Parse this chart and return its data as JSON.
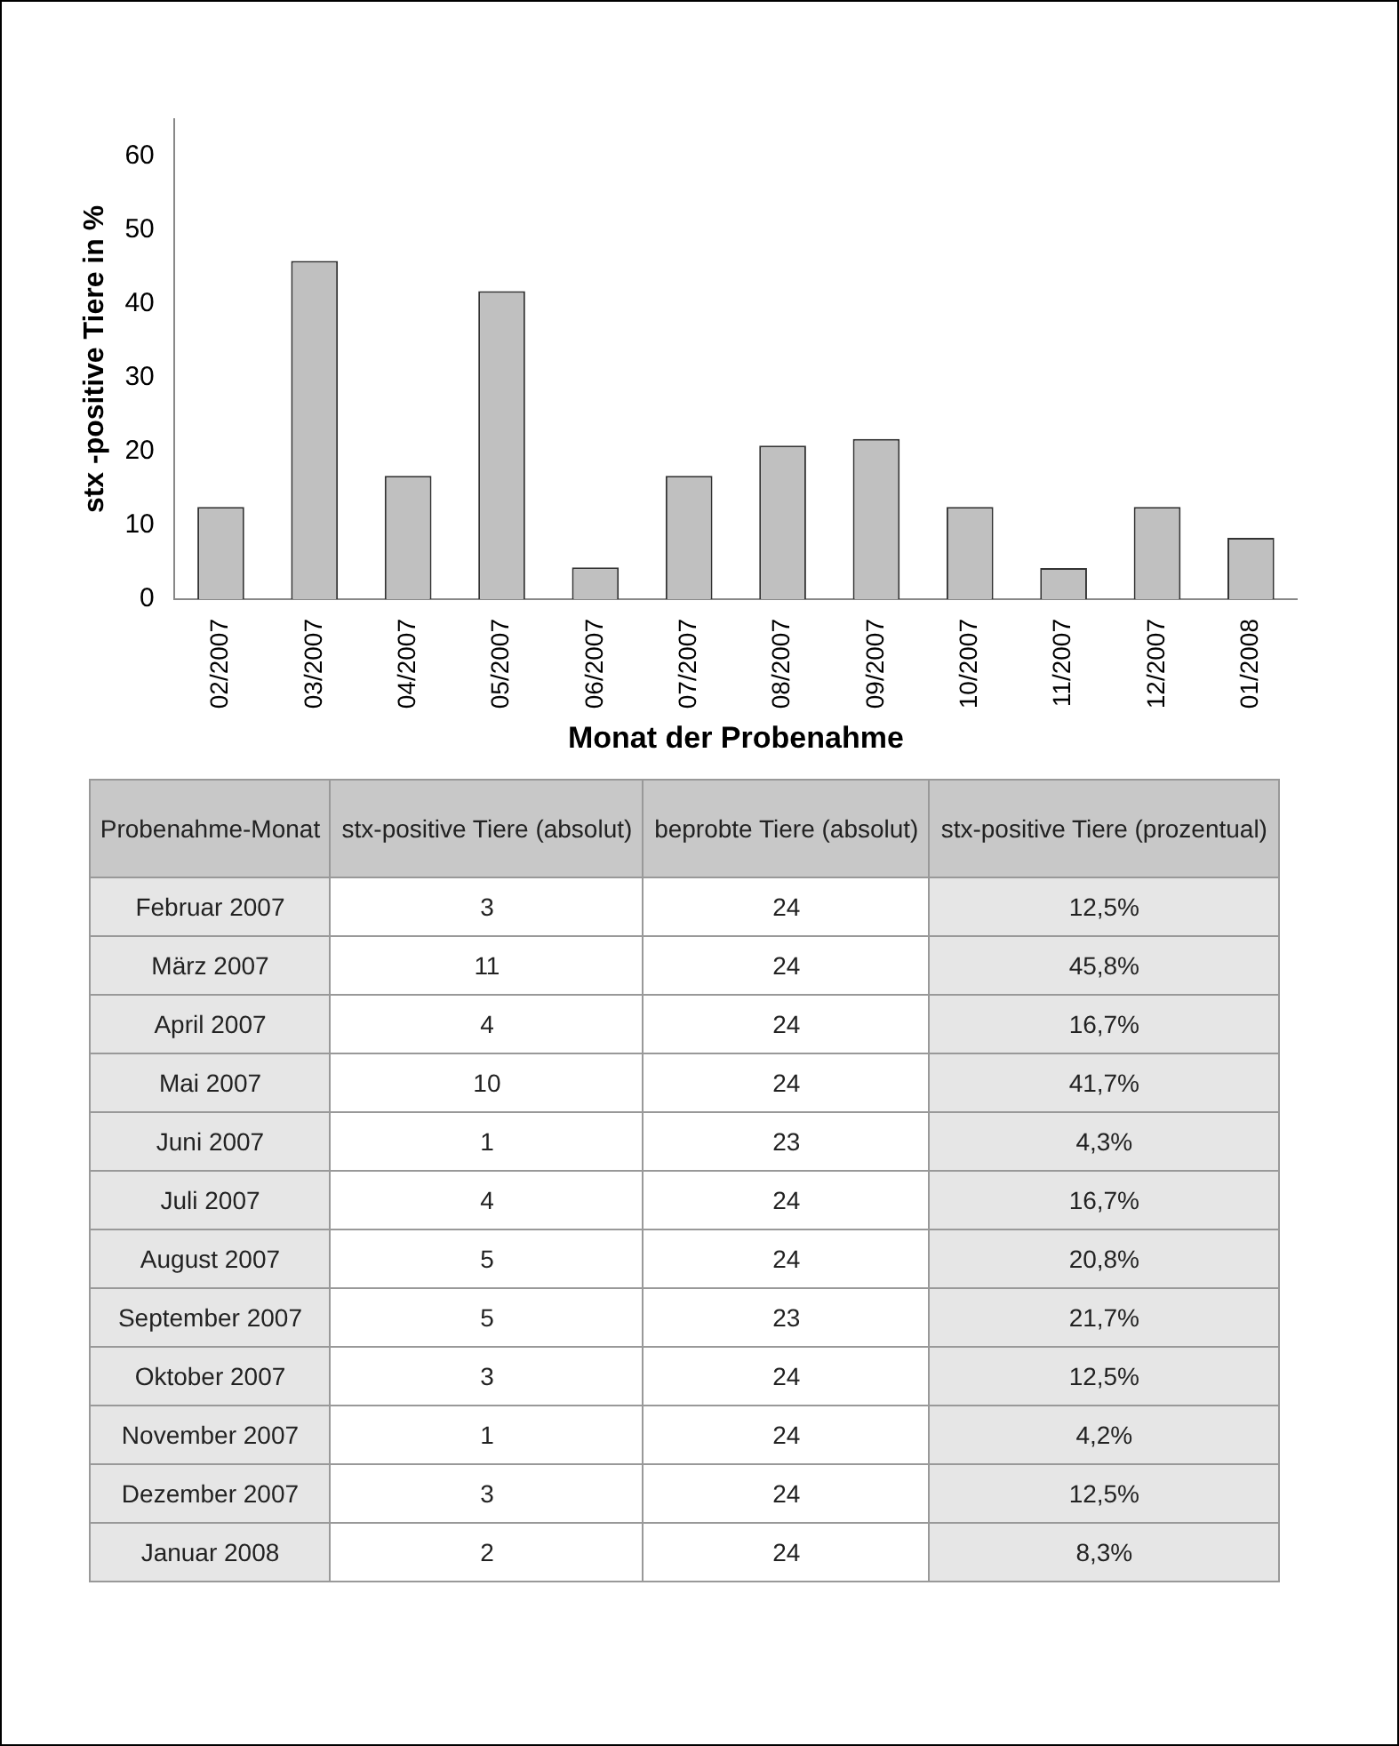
{
  "chart_data": [
    {
      "type": "bar",
      "xlabel": "Monat der Probenahme",
      "ylabel": "stx -positive Tiere in %",
      "categories": [
        "02/2007",
        "03/2007",
        "04/2007",
        "05/2007",
        "06/2007",
        "07/2007",
        "08/2007",
        "09/2007",
        "10/2007",
        "11/2007",
        "12/2007",
        "01/2008"
      ],
      "values": [
        12.5,
        45.8,
        16.7,
        41.7,
        4.3,
        16.7,
        20.8,
        21.7,
        12.5,
        4.2,
        12.5,
        8.3
      ],
      "color": "#c0c0c0",
      "ylim": [
        0,
        65
      ],
      "yticks": [
        0,
        10,
        20,
        30,
        40,
        50,
        60
      ],
      "grid": false,
      "legend": false
    },
    {
      "type": "other",
      "ylabel": "Probenahme-Monat",
      "categories": [
        "Februar 2007",
        "März 2007",
        "April 2007",
        "Mai 2007",
        "Juni 2007",
        "Juli 2007",
        "August 2007",
        "September 2007",
        "Oktober 2007",
        "November 2007",
        "Dezember 2007",
        "Januar 2008"
      ],
      "series": [
        {
          "name": "stx-positive Tiere (absolut)",
          "values": [
            3,
            11,
            4,
            10,
            1,
            4,
            5,
            5,
            3,
            1,
            3,
            2
          ]
        },
        {
          "name": "beprobte Tiere (absolut)",
          "values": [
            24,
            24,
            24,
            24,
            23,
            24,
            24,
            23,
            24,
            24,
            24,
            24
          ]
        },
        {
          "name": "stx-positive Tiere (prozentual)",
          "values": [
            12.5,
            45.8,
            16.7,
            41.7,
            4.3,
            16.7,
            20.8,
            21.7,
            12.5,
            4.2,
            12.5,
            8.3
          ],
          "value_labels": [
            "12,5%",
            "45,8%",
            "16,7%",
            "41,7%",
            "4,3%",
            "16,7%",
            "20,8%",
            "21,7%",
            "12,5%",
            "4,2%",
            "12,5%",
            "8,3%"
          ]
        }
      ],
      "data_labels": true
    }
  ]
}
